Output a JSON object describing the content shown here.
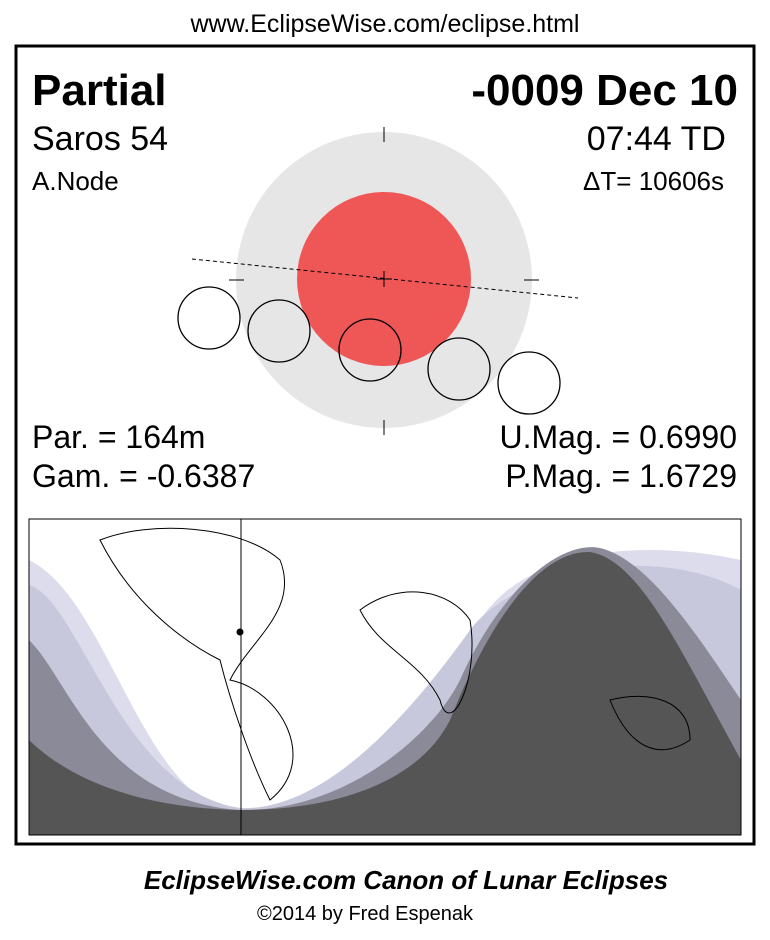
{
  "header": {
    "url": "www.EclipseWise.com/eclipse.html"
  },
  "eclipse": {
    "type": "Partial",
    "date": "-0009 Dec 10",
    "saros": "Saros  54",
    "time": "07:44 TD",
    "node": "A.Node",
    "delta_t": "ΔT=  10606s",
    "duration": "Par. = 164m",
    "u_mag": "U.Mag. = 0.6990",
    "gamma": "Gam. = -0.6387",
    "p_mag": "P.Mag. = 1.6729"
  },
  "footer": {
    "title": "EclipseWise.com Canon of Lunar Eclipses",
    "copyright": "©2014 by Fred Espenak"
  }
}
